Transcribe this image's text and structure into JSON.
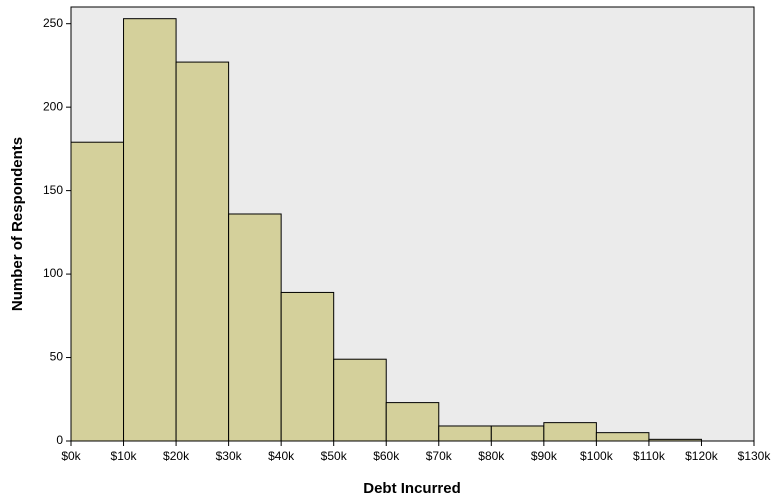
{
  "chart_data": {
    "type": "histogram",
    "x_label": "Debt Incurred",
    "y_label": "Number of Respondents",
    "bins": [
      0,
      10000,
      20000,
      30000,
      40000,
      50000,
      60000,
      70000,
      80000,
      90000,
      100000,
      110000,
      120000
    ],
    "counts": [
      179,
      253,
      227,
      136,
      89,
      49,
      23,
      9,
      9,
      11,
      5,
      1
    ],
    "color": "#d4d09b",
    "edge_color": "#000000",
    "background": "#ebebeb",
    "xlim": [
      0,
      130000
    ],
    "xticks": [
      {
        "value": 0,
        "label": "$0k"
      },
      {
        "value": 10000,
        "label": "$10k"
      },
      {
        "value": 20000,
        "label": "$20k"
      },
      {
        "value": 30000,
        "label": "$30k"
      },
      {
        "value": 40000,
        "label": "$40k"
      },
      {
        "value": 50000,
        "label": "$50k"
      },
      {
        "value": 60000,
        "label": "$60k"
      },
      {
        "value": 70000,
        "label": "$70k"
      },
      {
        "value": 80000,
        "label": "$80k"
      },
      {
        "value": 90000,
        "label": "$90k"
      },
      {
        "value": 100000,
        "label": "$100k"
      },
      {
        "value": 110000,
        "label": "$110k"
      },
      {
        "value": 120000,
        "label": "$120k"
      },
      {
        "value": 130000,
        "label": "$130k"
      }
    ],
    "ylim": [
      0,
      260
    ],
    "yticks": [
      0,
      50,
      100,
      150,
      200,
      250
    ],
    "grid": false
  }
}
